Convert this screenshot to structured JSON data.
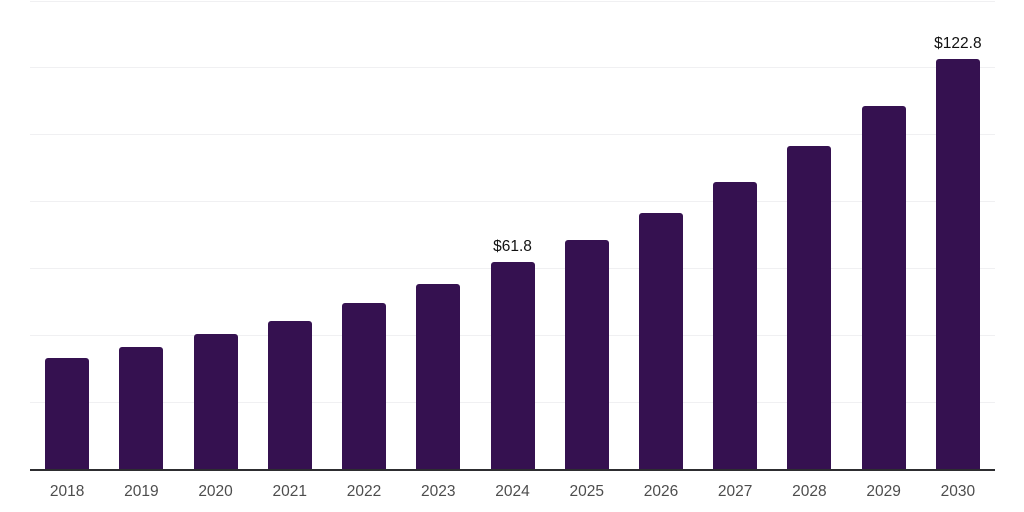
{
  "chart_data": {
    "type": "bar",
    "title": "",
    "xlabel": "",
    "ylabel": "",
    "categories": [
      "2018",
      "2019",
      "2020",
      "2021",
      "2022",
      "2023",
      "2024",
      "2025",
      "2026",
      "2027",
      "2028",
      "2029",
      "2030"
    ],
    "values": [
      33.1,
      36.4,
      40.3,
      44.4,
      49.7,
      55.2,
      61.8,
      68.4,
      76.6,
      85.8,
      96.5,
      108.5,
      122.8
    ],
    "data_labels": [
      "",
      "",
      "",
      "",
      "",
      "",
      "$61.8",
      "",
      "",
      "",
      "",
      "",
      "$122.8"
    ],
    "ylim": [
      0,
      140
    ],
    "gridline_step": 20,
    "grid": "horizontal",
    "y_tick_labels_visible": false,
    "legend": "none",
    "colors": {
      "bar": "#351150",
      "gridline": "#f0f0f2",
      "axis_line": "#2d2d30",
      "tick_label": "#4d4d4d",
      "data_label": "#111111",
      "background": "#ffffff"
    }
  }
}
